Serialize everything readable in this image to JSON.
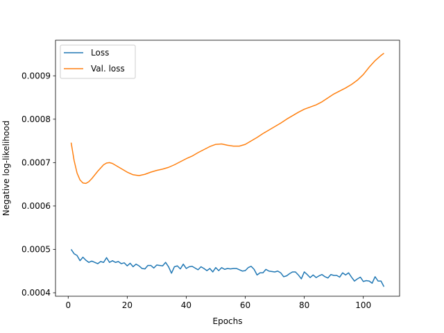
{
  "chart_data": {
    "type": "line",
    "title": "",
    "xlabel": "Epochs",
    "ylabel": "Negative log-likelihood",
    "xlim": [
      -4.3,
      112.3
    ],
    "ylim": [
      0.000392,
      0.000982
    ],
    "xticks": [
      0,
      20,
      40,
      60,
      80,
      100
    ],
    "xtick_labels": [
      "0",
      "20",
      "40",
      "60",
      "80",
      "100"
    ],
    "yticks": [
      0.0004,
      0.0005,
      0.0006,
      0.0007,
      0.0008,
      0.0009
    ],
    "ytick_labels": [
      "0.0004",
      "0.0005",
      "0.0006",
      "0.0007",
      "0.0008",
      "0.0009"
    ],
    "grid": false,
    "legend_position": "top-left",
    "colors": {
      "loss": "#1f77b4",
      "val_loss": "#ff7f0e"
    },
    "series": [
      {
        "name": "Loss",
        "x": [
          1,
          2,
          3,
          4,
          5,
          6,
          7,
          8,
          9,
          10,
          11,
          12,
          13,
          14,
          15,
          16,
          17,
          18,
          19,
          20,
          21,
          22,
          23,
          24,
          25,
          26,
          27,
          28,
          29,
          30,
          31,
          32,
          33,
          34,
          35,
          36,
          37,
          38,
          39,
          40,
          41,
          42,
          43,
          44,
          45,
          46,
          47,
          48,
          49,
          50,
          51,
          52,
          53,
          54,
          55,
          56,
          57,
          58,
          59,
          60,
          61,
          62,
          63,
          64,
          65,
          66,
          67,
          68,
          69,
          70,
          71,
          72,
          73,
          74,
          75,
          76,
          77,
          78,
          79,
          80,
          81,
          82,
          83,
          84,
          85,
          86,
          87,
          88,
          89,
          90,
          91,
          92,
          93,
          94,
          95,
          96,
          97,
          98,
          99,
          100,
          101,
          102,
          103,
          104,
          105,
          106,
          107
        ],
        "y": [
          0.0005,
          0.00049,
          0.000486,
          0.000474,
          0.000482,
          0.000475,
          0.00047,
          0.000473,
          0.00047,
          0.000467,
          0.000472,
          0.00047,
          0.000481,
          0.00047,
          0.000474,
          0.00047,
          0.000472,
          0.000467,
          0.000469,
          0.000462,
          0.000468,
          0.00046,
          0.000466,
          0.000462,
          0.000456,
          0.000455,
          0.000463,
          0.000463,
          0.000457,
          0.000464,
          0.000463,
          0.000462,
          0.00047,
          0.00046,
          0.000445,
          0.00046,
          0.000462,
          0.000455,
          0.000466,
          0.000456,
          0.00046,
          0.000461,
          0.000457,
          0.000453,
          0.00046,
          0.000456,
          0.000451,
          0.000456,
          0.000448,
          0.000458,
          0.000451,
          0.000458,
          0.000454,
          0.000456,
          0.000455,
          0.000456,
          0.000456,
          0.000453,
          0.00045,
          0.000451,
          0.000458,
          0.000461,
          0.000454,
          0.000441,
          0.000446,
          0.000446,
          0.000454,
          0.00045,
          0.000449,
          0.000448,
          0.00045,
          0.000446,
          0.000437,
          0.000439,
          0.000444,
          0.000448,
          0.000448,
          0.000441,
          0.000432,
          0.000448,
          0.000442,
          0.000435,
          0.000441,
          0.000435,
          0.000439,
          0.000442,
          0.000437,
          0.000434,
          0.000442,
          0.00044,
          0.00044,
          0.000436,
          0.000446,
          0.000441,
          0.000446,
          0.000436,
          0.000427,
          0.000432,
          0.000436,
          0.000426,
          0.000428,
          0.000427,
          0.000422,
          0.000437,
          0.000427,
          0.000427,
          0.000414
        ]
      },
      {
        "name": "Val. loss",
        "x": [
          1,
          2,
          3,
          4,
          5,
          6,
          7,
          8,
          10,
          12,
          13,
          14,
          15,
          16,
          18,
          20,
          22,
          24,
          26,
          28,
          30,
          32,
          34,
          36,
          38,
          40,
          42,
          44,
          46,
          48,
          50,
          52,
          54,
          56,
          58,
          60,
          62,
          64,
          66,
          68,
          70,
          72,
          74,
          76,
          78,
          80,
          82,
          84,
          86,
          88,
          90,
          92,
          94,
          96,
          98,
          100,
          102,
          104,
          106,
          107
        ],
        "y": [
          0.000746,
          0.000705,
          0.000676,
          0.00066,
          0.000653,
          0.000652,
          0.000656,
          0.000663,
          0.00068,
          0.000695,
          0.000699,
          0.0007,
          0.000698,
          0.000694,
          0.000686,
          0.000678,
          0.000672,
          0.00067,
          0.000673,
          0.000678,
          0.000682,
          0.000685,
          0.000689,
          0.000695,
          0.000702,
          0.000709,
          0.000715,
          0.000723,
          0.00073,
          0.000737,
          0.000742,
          0.000743,
          0.00074,
          0.000738,
          0.000738,
          0.000742,
          0.00075,
          0.000758,
          0.000767,
          0.000775,
          0.000783,
          0.000791,
          0.0008,
          0.000808,
          0.000816,
          0.000823,
          0.000828,
          0.000833,
          0.00084,
          0.000849,
          0.000858,
          0.000865,
          0.000872,
          0.00088,
          0.00089,
          0.000903,
          0.00092,
          0.000935,
          0.000947,
          0.000952
        ]
      }
    ]
  }
}
